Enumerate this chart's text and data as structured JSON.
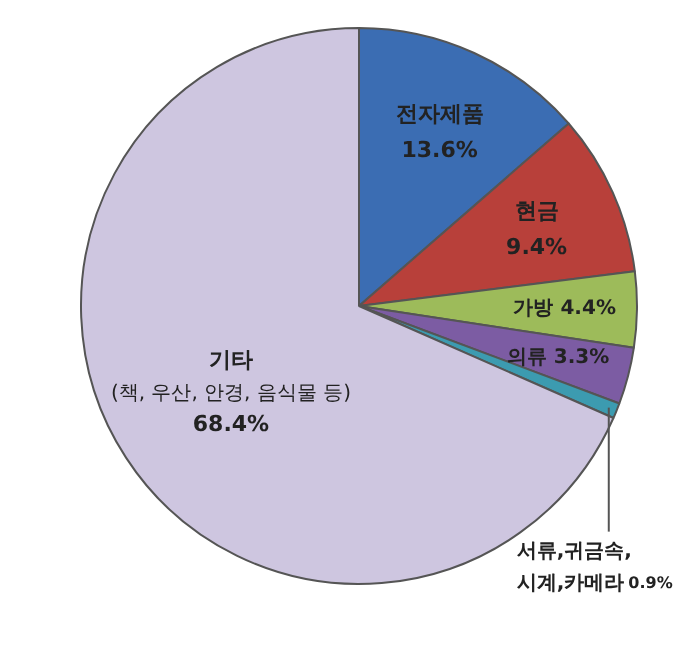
{
  "chart_data": {
    "type": "pie",
    "categories": [
      "전자제품",
      "현금",
      "가방",
      "의류",
      "서류,귀금속, 시계,카메라",
      "기타 (책, 우산, 안경, 음식물 등)"
    ],
    "values": [
      13.6,
      9.4,
      4.4,
      3.3,
      0.9,
      68.4
    ],
    "value_labels": [
      "13.6%",
      "9.4%",
      "4.4%",
      "3.3%",
      "0.9%",
      "68.4%"
    ],
    "colors": [
      "#3b6db3",
      "#b8403a",
      "#9dbb5a",
      "#7c5ca3",
      "#3c9bb0",
      "#cec6e0"
    ],
    "legend": false
  }
}
